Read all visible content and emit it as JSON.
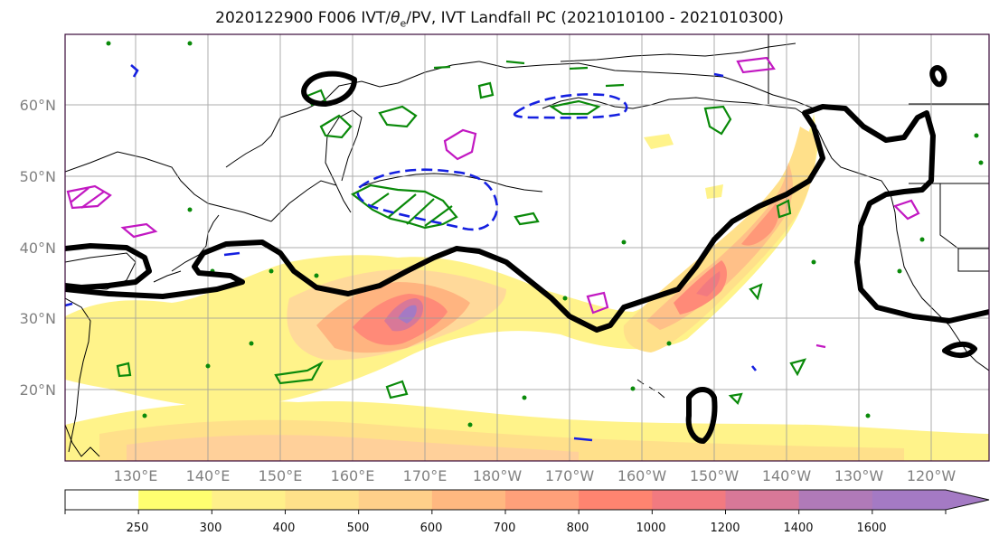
{
  "title": {
    "prefix": "2020122900 F006 IVT/",
    "theta": "θ",
    "sub": "e",
    "suffix": "/PV, IVT Landfall PC (2021010100 - 2021010300)"
  },
  "map": {
    "lat_labels": [
      "60°N",
      "50°N",
      "40°N",
      "30°N",
      "20°N"
    ],
    "lon_labels": [
      "130°E",
      "140°E",
      "150°E",
      "160°E",
      "170°E",
      "180°W",
      "170°W",
      "160°W",
      "150°W",
      "140°W",
      "130°W",
      "120°W"
    ]
  },
  "colorbar": {
    "ticks": [
      "250",
      "300",
      "400",
      "500",
      "600",
      "700",
      "800",
      "1000",
      "1200",
      "1400",
      "1600"
    ],
    "colors": [
      "#ffffff",
      "#ffff70",
      "#fff08a",
      "#ffe18a",
      "#ffd08a",
      "#ffb880",
      "#ffa07a",
      "#ff8470",
      "#f27a80",
      "#d87898",
      "#b07ab8",
      "#a47ac4"
    ]
  }
}
